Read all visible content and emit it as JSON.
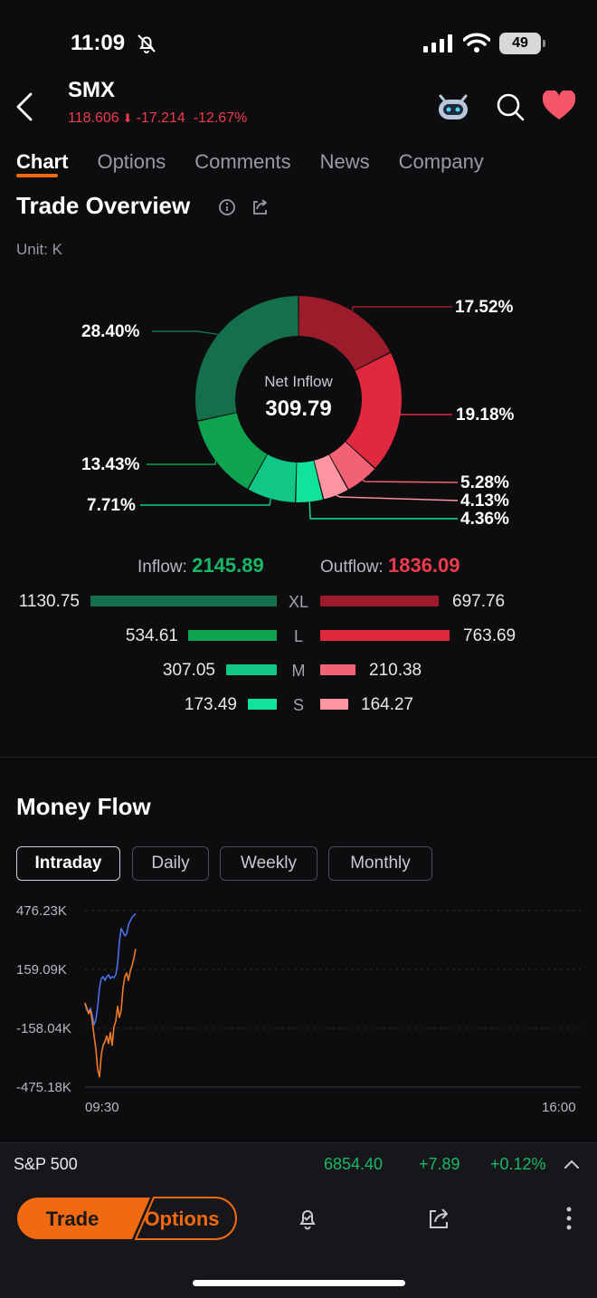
{
  "status": {
    "time": "11:09",
    "battery": "49"
  },
  "header": {
    "ticker": "SMX",
    "price": "118.606",
    "change": "-17.214",
    "change_pct": "-12.67%"
  },
  "tabs": [
    "Chart",
    "Options",
    "Comments",
    "News",
    "Company"
  ],
  "trade_overview": {
    "title": "Trade Overview",
    "unit": "Unit: K",
    "net_label": "Net Inflow",
    "net_value": "309.79",
    "inflow_label": "Inflow:",
    "inflow_value": "2145.89",
    "outflow_label": "Outflow:",
    "outflow_value": "1836.09",
    "slices": [
      {
        "label": "17.52%",
        "value": 17.52,
        "color": "#9c1c2c"
      },
      {
        "label": "19.18%",
        "value": 19.18,
        "color": "#e0293f"
      },
      {
        "label": "5.28%",
        "value": 5.28,
        "color": "#f26274"
      },
      {
        "label": "4.13%",
        "value": 4.13,
        "color": "#ff95a0"
      },
      {
        "label": "4.36%",
        "value": 4.36,
        "color": "#12e39a"
      },
      {
        "label": "7.71%",
        "value": 7.71,
        "color": "#10c785"
      },
      {
        "label": "13.43%",
        "value": 13.43,
        "color": "#0ea34f"
      },
      {
        "label": "28.40%",
        "value": 28.4,
        "color": "#14704a"
      }
    ],
    "rows": [
      {
        "size": "XL",
        "in": "1130.75",
        "out": "697.76",
        "in_color": "#14704a",
        "out_color": "#9c1c2c"
      },
      {
        "size": "L",
        "in": "534.61",
        "out": "763.69",
        "in_color": "#0ea34f",
        "out_color": "#e0293f"
      },
      {
        "size": "M",
        "in": "307.05",
        "out": "210.38",
        "in_color": "#10c785",
        "out_color": "#f26274"
      },
      {
        "size": "S",
        "in": "173.49",
        "out": "164.27",
        "in_color": "#12e39a",
        "out_color": "#ff95a0"
      }
    ]
  },
  "money_flow": {
    "title": "Money Flow",
    "periods": [
      "Intraday",
      "Daily",
      "Weekly",
      "Monthly"
    ],
    "active_period": "Intraday"
  },
  "chart_data": {
    "type": "line",
    "y_ticks": [
      "476.23K",
      "159.09K",
      "-158.04K",
      "-475.18K"
    ],
    "x_ticks": [
      "09:30",
      "16:00"
    ],
    "ylim": [
      -475.18,
      476.23
    ],
    "series": [
      {
        "color": "#4a6fe8",
        "x": [
          0,
          2,
          4,
          6,
          8,
          10,
          12,
          14,
          16,
          18,
          20,
          22,
          24,
          26,
          28,
          30,
          32,
          34,
          36,
          38,
          40,
          42,
          44,
          46,
          48,
          50,
          52,
          54,
          56
        ],
        "y": [
          -30,
          -60,
          -70,
          -50,
          -90,
          -140,
          -110,
          -40,
          60,
          110,
          120,
          100,
          120,
          130,
          110,
          120,
          115,
          130,
          190,
          310,
          380,
          360,
          340,
          350,
          400,
          420,
          440,
          450,
          460
        ]
      },
      {
        "color": "#f07a2a",
        "x": [
          0,
          2,
          4,
          6,
          8,
          10,
          12,
          14,
          16,
          18,
          20,
          22,
          24,
          26,
          28,
          30,
          32,
          34,
          36,
          38,
          40,
          42,
          44,
          46,
          48,
          50,
          52,
          54,
          56
        ],
        "y": [
          -20,
          -50,
          -80,
          -60,
          -120,
          -200,
          -270,
          -380,
          -420,
          -300,
          -250,
          -230,
          -200,
          -240,
          -180,
          -250,
          -150,
          -120,
          -40,
          -100,
          -60,
          60,
          120,
          140,
          100,
          150,
          180,
          220,
          270
        ]
      }
    ]
  },
  "bottom_ticker": {
    "name": "S&P 500",
    "price": "6854.40",
    "change": "+7.89",
    "change_pct": "+0.12%"
  },
  "bottom_bar": {
    "trade": "Trade",
    "options": "Options"
  },
  "colors": {
    "accent": "#f06a12",
    "up": "#19b867",
    "down": "#ef3b4e"
  }
}
